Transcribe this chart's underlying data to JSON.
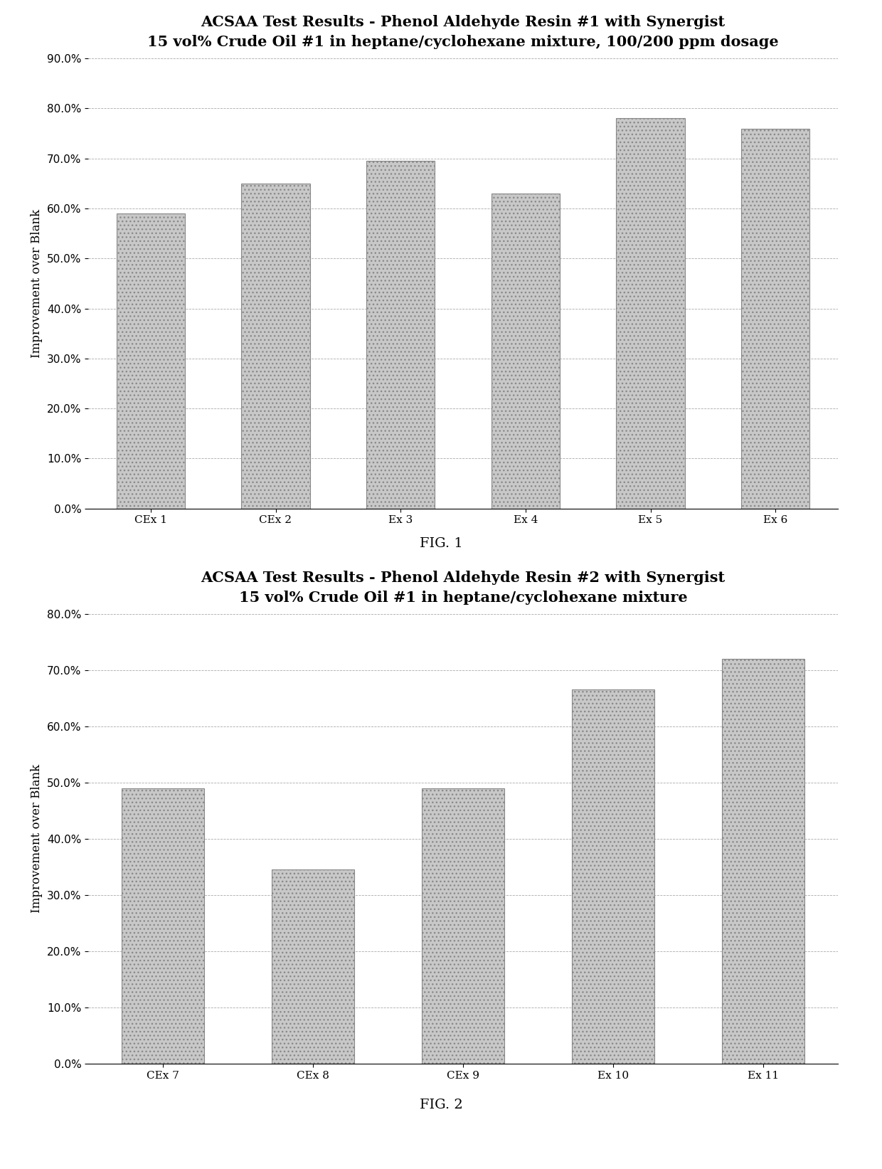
{
  "fig1": {
    "title_line1": "ACSAA Test Results - Phenol Aldehyde Resin #1 with Synergist",
    "title_line2": "15 vol% Crude Oil #1 in heptane/cyclohexane mixture, 100/200 ppm dosage",
    "categories": [
      "CEx 1",
      "CEx 2",
      "Ex 3",
      "Ex 4",
      "Ex 5",
      "Ex 6"
    ],
    "values": [
      0.59,
      0.65,
      0.695,
      0.63,
      0.78,
      0.76
    ],
    "ylabel": "Improvement over Blank",
    "ylim": [
      0.0,
      0.9
    ],
    "yticks": [
      0.0,
      0.1,
      0.2,
      0.3,
      0.4,
      0.5,
      0.6,
      0.7,
      0.8,
      0.9
    ],
    "fig_label": "FIG. 1",
    "bar_color": "#c8c8c8",
    "bar_hatch": "...",
    "bar_edgecolor": "#888888"
  },
  "fig2": {
    "title_line1": "ACSAA Test Results - Phenol Aldehyde Resin #2 with Synergist",
    "title_line2": "15 vol% Crude Oil #1 in heptane/cyclohexane mixture",
    "categories": [
      "CEx 7",
      "CEx 8",
      "CEx 9",
      "Ex 10",
      "Ex 11"
    ],
    "values": [
      0.49,
      0.345,
      0.49,
      0.665,
      0.72
    ],
    "ylabel": "Improvement over Blank",
    "ylim": [
      0.0,
      0.8
    ],
    "yticks": [
      0.0,
      0.1,
      0.2,
      0.3,
      0.4,
      0.5,
      0.6,
      0.7,
      0.8
    ],
    "fig_label": "FIG. 2",
    "bar_color": "#c8c8c8",
    "bar_hatch": "...",
    "bar_edgecolor": "#888888"
  },
  "background_color": "#ffffff",
  "title_fontsize": 15,
  "subtitle_fontsize": 12,
  "axis_label_fontsize": 12,
  "tick_fontsize": 11,
  "fig_label_fontsize": 14
}
